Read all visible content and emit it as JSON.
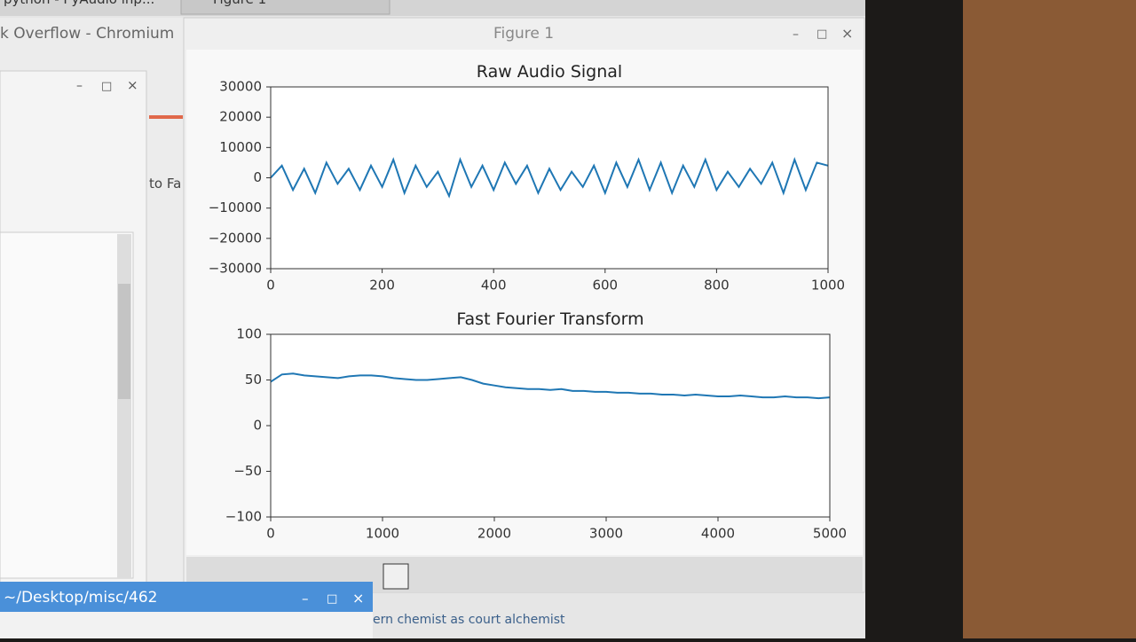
{
  "taskbar": {
    "tab1": "python - PyAudio inp...",
    "tab2": "Figure 1"
  },
  "browser": {
    "title": "k Overflow - Chromium",
    "snippet": "to Fa",
    "footer_text": "ern chemist as court alchemist"
  },
  "figure_window": {
    "title": "Figure 1"
  },
  "terminal": {
    "title": "~/Desktop/misc/462"
  },
  "chart_data": [
    {
      "type": "line",
      "title": "Raw Audio Signal",
      "x": [
        0,
        20,
        40,
        60,
        80,
        100,
        120,
        140,
        160,
        180,
        200,
        220,
        240,
        260,
        280,
        300,
        320,
        340,
        360,
        380,
        400,
        420,
        440,
        460,
        480,
        500,
        520,
        540,
        560,
        580,
        600,
        620,
        640,
        660,
        680,
        700,
        720,
        740,
        760,
        780,
        800,
        820,
        840,
        860,
        880,
        900,
        920,
        940,
        960,
        980,
        1000
      ],
      "series": [
        {
          "color": "#1f77b4",
          "values": [
            0,
            4000,
            -4000,
            3000,
            -5000,
            5000,
            -2000,
            3000,
            -4000,
            4000,
            -3000,
            6000,
            -5000,
            4000,
            -3000,
            2000,
            -6000,
            6000,
            -3000,
            4000,
            -4000,
            5000,
            -2000,
            4000,
            -5000,
            3000,
            -4000,
            2000,
            -3000,
            4000,
            -5000,
            5000,
            -3000,
            6000,
            -4000,
            5000,
            -5000,
            4000,
            -3000,
            6000,
            -4000,
            2000,
            -3000,
            3000,
            -2000,
            5000,
            -5000,
            6000,
            -4000,
            5000,
            4000
          ]
        }
      ],
      "xlim": [
        0,
        1000
      ],
      "xticks": [
        0,
        200,
        400,
        600,
        800,
        1000
      ],
      "ylim": [
        -30000,
        30000
      ],
      "yticks": [
        {
          "value": -30000,
          "label": "−30000"
        },
        {
          "value": -20000,
          "label": "−20000"
        },
        {
          "value": -10000,
          "label": "−10000"
        },
        0,
        10000,
        20000,
        30000
      ]
    },
    {
      "type": "line",
      "title": "Fast Fourier Transform",
      "x": [
        0,
        100,
        200,
        300,
        400,
        500,
        600,
        700,
        800,
        900,
        1000,
        1100,
        1200,
        1300,
        1400,
        1500,
        1600,
        1700,
        1800,
        1900,
        2000,
        2100,
        2200,
        2300,
        2400,
        2500,
        2600,
        2700,
        2800,
        2900,
        3000,
        3100,
        3200,
        3300,
        3400,
        3500,
        3600,
        3700,
        3800,
        3900,
        4000,
        4100,
        4200,
        4300,
        4400,
        4500,
        4600,
        4700,
        4800,
        4900,
        5000
      ],
      "series": [
        {
          "color": "#1f77b4",
          "values": [
            48,
            56,
            57,
            55,
            54,
            53,
            52,
            54,
            55,
            55,
            54,
            52,
            51,
            50,
            50,
            51,
            52,
            53,
            50,
            46,
            44,
            42,
            41,
            40,
            40,
            39,
            40,
            38,
            38,
            37,
            37,
            36,
            36,
            35,
            35,
            34,
            34,
            33,
            34,
            33,
            32,
            32,
            33,
            32,
            31,
            31,
            32,
            31,
            31,
            30,
            31
          ]
        }
      ],
      "xlim": [
        0,
        5000
      ],
      "xticks": [
        0,
        1000,
        2000,
        3000,
        4000,
        5000
      ],
      "ylim": [
        -100,
        100
      ],
      "yticks": [
        {
          "value": -100,
          "label": "−100"
        },
        {
          "value": -50,
          "label": "−50"
        },
        0,
        50,
        100
      ]
    }
  ]
}
